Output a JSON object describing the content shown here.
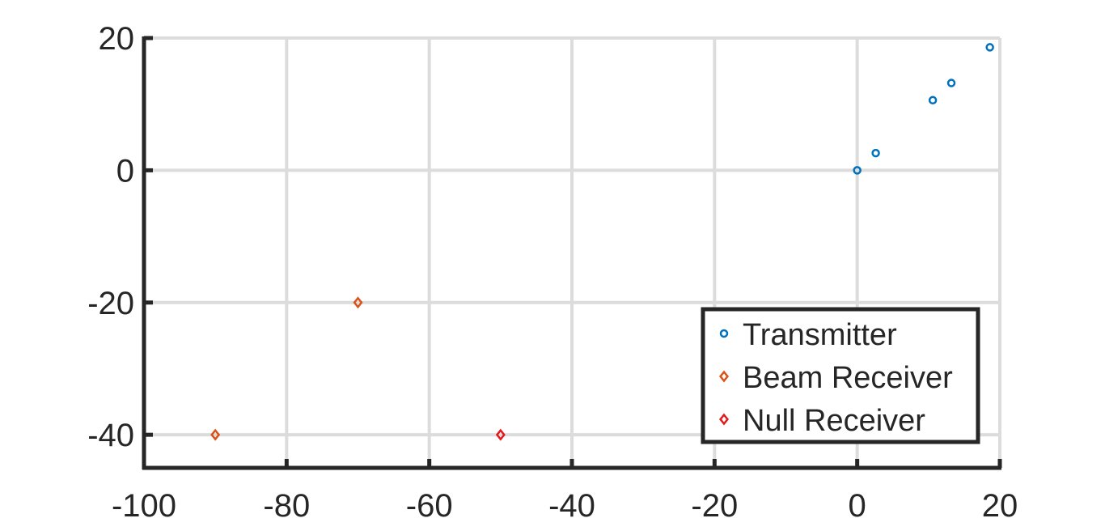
{
  "chart_data": {
    "type": "scatter",
    "title": "",
    "xlabel": "",
    "ylabel": "",
    "xlim": [
      -100,
      20
    ],
    "ylim": [
      -45,
      20
    ],
    "xticks": [
      -100,
      -80,
      -60,
      -40,
      -20,
      0,
      20
    ],
    "yticks": [
      -40,
      -20,
      0,
      20
    ],
    "grid": true,
    "legend_position": "bottom-right",
    "series": [
      {
        "name": "Transmitter",
        "marker": "circle",
        "color": "#0072BD",
        "points": [
          [
            0,
            0
          ],
          [
            2.6,
            2.6
          ],
          [
            10.6,
            10.6
          ],
          [
            13.2,
            13.2
          ],
          [
            18.6,
            18.6
          ]
        ]
      },
      {
        "name": "Beam Receiver",
        "marker": "diamond",
        "color": "#D95319",
        "points": [
          [
            -70,
            -20
          ],
          [
            -90,
            -40
          ]
        ]
      },
      {
        "name": "Null Receiver",
        "marker": "diamond",
        "color": "#E31A1C",
        "points": [
          [
            -50,
            -40
          ]
        ]
      }
    ]
  }
}
